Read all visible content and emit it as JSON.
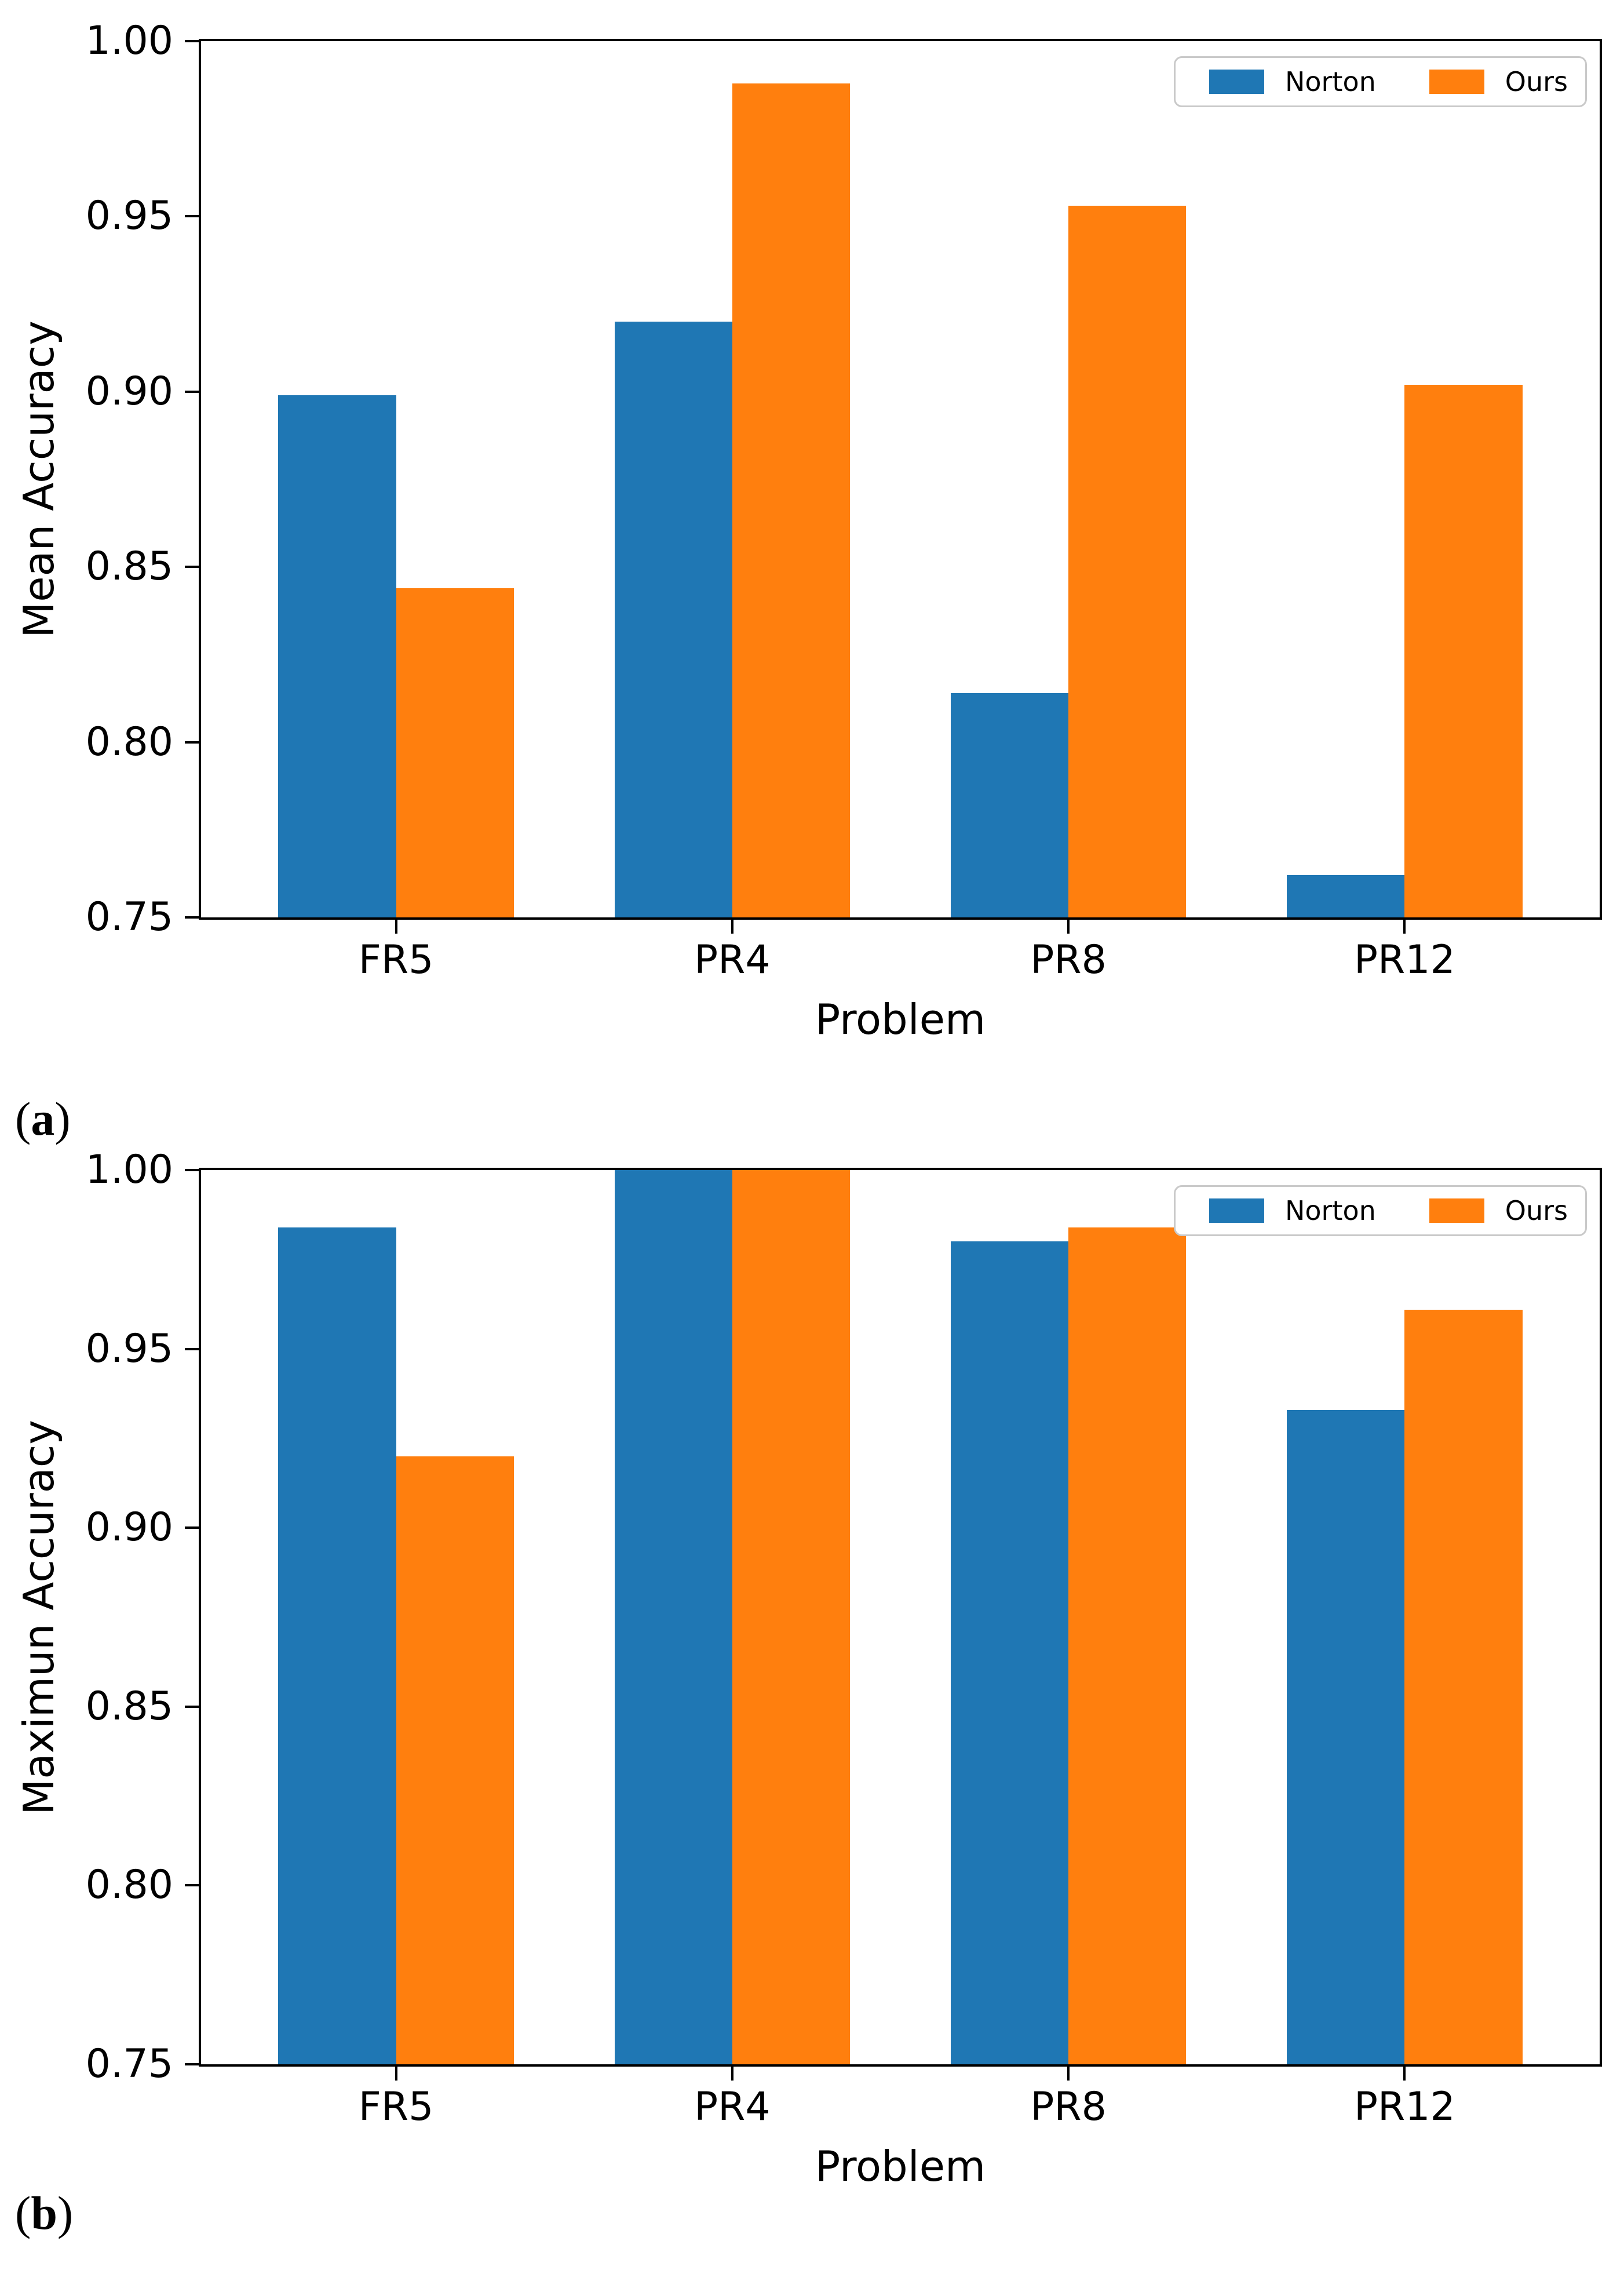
{
  "figure": {
    "background": "#ffffff",
    "paren_open": "(",
    "paren_close": ")",
    "legend_border_color": "#c9c9c9",
    "series_colors": {
      "Norton": "#1f77b4",
      "Ours": "#ff7f0e"
    }
  },
  "chart_data": [
    {
      "type": "bar",
      "panel_letter": "a",
      "title": "",
      "xlabel": "Problem",
      "ylabel": "Mean Accuracy",
      "categories": [
        "FR5",
        "PR4",
        "PR8",
        "PR12"
      ],
      "series": [
        {
          "name": "Norton",
          "color": "#1f77b4",
          "values": [
            0.899,
            0.92,
            0.814,
            0.762
          ]
        },
        {
          "name": "Ours",
          "color": "#ff7f0e",
          "values": [
            0.844,
            0.988,
            0.953,
            0.902
          ]
        }
      ],
      "ylim": [
        0.75,
        1.0
      ],
      "yticks": [
        1.0,
        0.95,
        0.9,
        0.85,
        0.8,
        0.75
      ],
      "ytick_labels": [
        "1.00",
        "0.95",
        "0.90",
        "0.85",
        "0.80",
        "0.75"
      ],
      "bar_width_data_units": 0.35,
      "grid": false,
      "legend": {
        "position": "upper right",
        "labels": [
          "Norton",
          "Ours"
        ]
      }
    },
    {
      "type": "bar",
      "panel_letter": "b",
      "title": "",
      "xlabel": "Problem",
      "ylabel": "Maximun Accuracy",
      "categories": [
        "FR5",
        "PR4",
        "PR8",
        "PR12"
      ],
      "series": [
        {
          "name": "Norton",
          "color": "#1f77b4",
          "values": [
            0.984,
            1.0,
            0.98,
            0.933
          ]
        },
        {
          "name": "Ours",
          "color": "#ff7f0e",
          "values": [
            0.92,
            1.0,
            0.984,
            0.961
          ]
        }
      ],
      "ylim": [
        0.75,
        1.0
      ],
      "yticks": [
        1.0,
        0.95,
        0.9,
        0.85,
        0.8,
        0.75
      ],
      "ytick_labels": [
        "1.00",
        "0.95",
        "0.90",
        "0.85",
        "0.80",
        "0.75"
      ],
      "bar_width_data_units": 0.35,
      "grid": false,
      "legend": {
        "position": "upper right",
        "labels": [
          "Norton",
          "Ours"
        ]
      }
    }
  ]
}
